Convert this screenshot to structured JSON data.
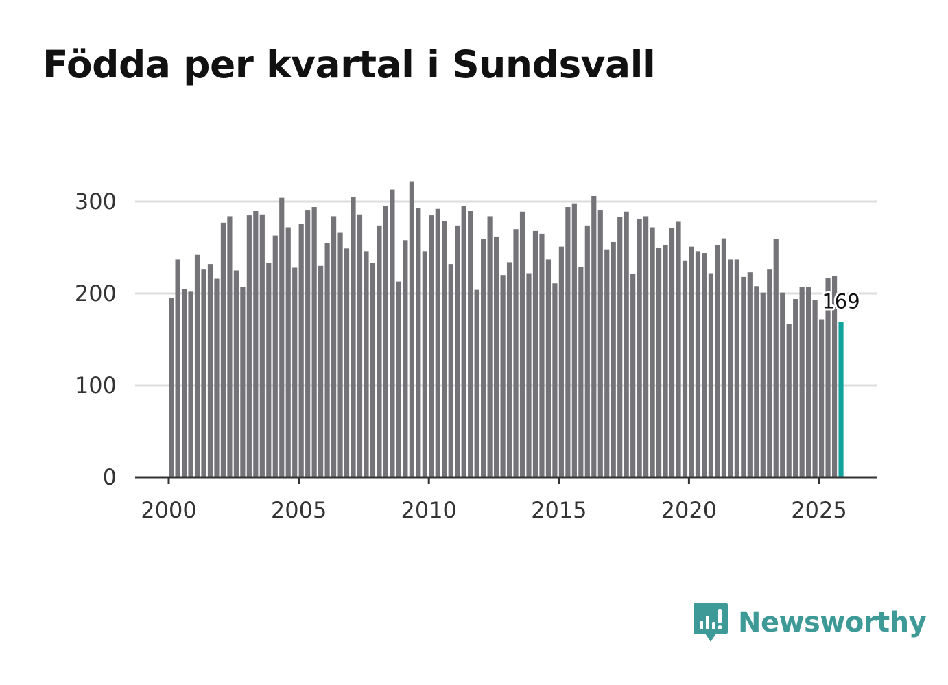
{
  "title": "Födda per kvartal i Sundsvall",
  "brand": {
    "name": "Newsworthy",
    "icon": "newsworthy-logo-icon",
    "color": "#3e9a97"
  },
  "colors": {
    "bar": "#737378",
    "highlight": "#11a29c",
    "grid": "#dddddd",
    "axis": "#333333"
  },
  "chart_data": {
    "type": "bar",
    "title": "Födda per kvartal i Sundsvall",
    "xlabel": "",
    "ylabel": "",
    "ylim": [
      0,
      300
    ],
    "yticks": [
      0,
      100,
      200,
      300
    ],
    "xticks": [
      2000,
      2005,
      2010,
      2015,
      2020,
      2025
    ],
    "x_start": 2000,
    "x_step": 0.25,
    "highlight_last": true,
    "last_value_label": "169",
    "values": [
      195,
      237,
      205,
      202,
      242,
      226,
      232,
      216,
      277,
      284,
      225,
      207,
      285,
      290,
      286,
      233,
      263,
      304,
      272,
      228,
      276,
      291,
      294,
      230,
      255,
      284,
      266,
      249,
      305,
      286,
      246,
      233,
      274,
      295,
      313,
      213,
      258,
      322,
      293,
      246,
      285,
      292,
      279,
      232,
      274,
      295,
      290,
      204,
      259,
      284,
      262,
      220,
      234,
      270,
      289,
      222,
      268,
      265,
      237,
      211,
      251,
      294,
      298,
      229,
      274,
      306,
      291,
      248,
      256,
      283,
      289,
      221,
      281,
      284,
      272,
      250,
      253,
      271,
      278,
      236,
      251,
      246,
      244,
      222,
      253,
      260,
      237,
      237,
      218,
      223,
      208,
      201,
      226,
      259,
      201,
      167,
      194,
      207,
      207,
      193,
      172,
      217,
      219,
      169
    ]
  }
}
